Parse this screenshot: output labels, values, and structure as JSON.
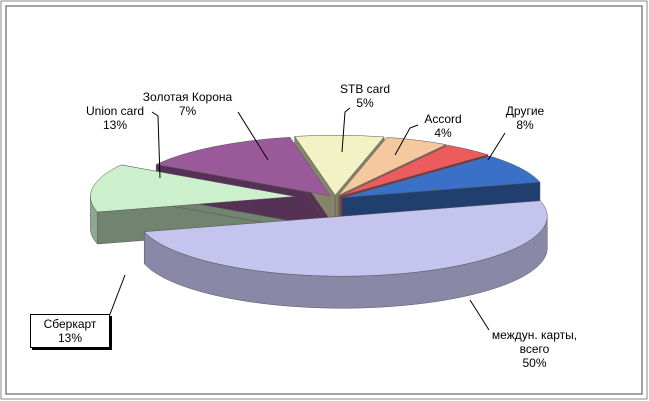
{
  "chart_data": {
    "type": "pie",
    "categories": [
      "междун. карты, всего",
      "Сберкарт",
      "Union card",
      "Золотая Корона",
      "STB card",
      "Accord",
      "Другие"
    ],
    "values": [
      50,
      13,
      13,
      7,
      5,
      4,
      8
    ],
    "value_labels": [
      "50%",
      "13%",
      "13%",
      "7%",
      "5%",
      "4%",
      "8%"
    ],
    "colors": [
      "#c4c4ee",
      "#ccf0cc",
      "#9a5a9a",
      "#f2f2c4",
      "#f5c8a0",
      "#ec5c5c",
      "#3a70c8"
    ]
  }
}
